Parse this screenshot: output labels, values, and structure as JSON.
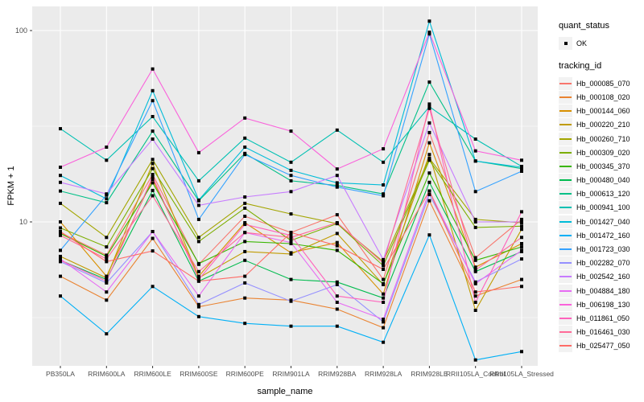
{
  "axes": {
    "x_title": "sample_name",
    "y_title": "FPKM + 1",
    "y_tick_labels": [
      "100",
      "10"
    ]
  },
  "legend": {
    "quant_status_title": "quant_status",
    "ok_label": "OK",
    "tracking_title": "tracking_id"
  },
  "colors": {
    "panel_bg": "#EBEBEB",
    "grid_major": "#FFFFFF",
    "grid_minor": "#FFFFFF",
    "tick_mark": "#333333",
    "tick_text": "#4D4D4D",
    "legend_key_bg": "#F2F2F2",
    "point": "#000000"
  },
  "chart_data": {
    "type": "line",
    "title": "",
    "xlabel": "sample_name",
    "ylabel": "FPKM + 1",
    "y_scale": "log10",
    "ylim": [
      1.77,
      131
    ],
    "y_major_ticks": [
      10,
      100
    ],
    "y_minor_ticks": [
      3.162,
      31.62
    ],
    "grid": "white major and minor gridlines on grey panel",
    "legend_position": "right",
    "point_marker": "small black square (quant_status = OK)",
    "categories": [
      "PB350LA",
      "RRIM600LA",
      "RRIM600LE",
      "RRIM600SE",
      "RRIM600PE",
      "RRIM901LA",
      "RRIM928BA",
      "RRIM928LA",
      "RRIM928LE",
      "RRII105LA_Control",
      "RRII105LA_Stressed"
    ],
    "series": [
      {
        "name": "Hb_000085_070",
        "color": "#F8766D",
        "values": [
          8.8,
          6.7,
          17.7,
          6.0,
          10.7,
          8.8,
          10.9,
          5.0,
          29.3,
          6.5,
          10.3
        ]
      },
      {
        "name": "Hb_000108_020",
        "color": "#EA8331",
        "values": [
          5.2,
          3.9,
          8.2,
          3.6,
          4.0,
          3.9,
          3.5,
          2.8,
          12.9,
          4.1,
          5.0
        ]
      },
      {
        "name": "Hb_000144_060",
        "color": "#D89000",
        "values": [
          10.0,
          5.2,
          16.7,
          5.2,
          9.9,
          6.9,
          7.8,
          4.2,
          25.9,
          5.8,
          7.7
        ]
      },
      {
        "name": "Hb_000220_210",
        "color": "#C09B00",
        "values": [
          6.6,
          5.1,
          20.2,
          5.1,
          7.0,
          6.8,
          8.7,
          4.7,
          22.5,
          3.45,
          9.15
        ]
      },
      {
        "name": "Hb_000260_710",
        "color": "#A3A500",
        "values": [
          12.5,
          8.3,
          21.2,
          8.3,
          12.5,
          11.0,
          9.8,
          6.2,
          21.5,
          10.3,
          9.9
        ]
      },
      {
        "name": "Hb_000309_020",
        "color": "#7CAE00",
        "values": [
          9.3,
          7.4,
          19.0,
          7.9,
          11.8,
          8.0,
          9.8,
          5.9,
          21.0,
          9.35,
          9.5
        ]
      },
      {
        "name": "Hb_000345_370",
        "color": "#39B600",
        "values": [
          8.7,
          6.6,
          16.0,
          6.05,
          7.9,
          7.7,
          7.1,
          4.75,
          18.0,
          6.3,
          7.4
        ]
      },
      {
        "name": "Hb_000480_040",
        "color": "#00BB4E",
        "values": [
          6.3,
          5.0,
          14.6,
          4.9,
          6.3,
          5.0,
          4.85,
          4.0,
          16.1,
          5.5,
          7.0
        ]
      },
      {
        "name": "Hb_000613_120",
        "color": "#00C087",
        "values": [
          14.5,
          12.6,
          29.8,
          12.9,
          22.8,
          16.4,
          15.5,
          14.0,
          53.8,
          20.8,
          19.0
        ]
      },
      {
        "name": "Hb_000941_100",
        "color": "#00C0B2",
        "values": [
          30.7,
          21.0,
          35.5,
          16.4,
          27.4,
          20.5,
          30.2,
          20.5,
          40.0,
          27.1,
          19.5
        ]
      },
      {
        "name": "Hb_001427_040",
        "color": "#00BCD8",
        "values": [
          17.5,
          13.2,
          48.5,
          13.0,
          24.6,
          18.6,
          16.0,
          15.6,
          112.0,
          20.8,
          19.3
        ]
      },
      {
        "name": "Hb_001472_160",
        "color": "#00B0F6",
        "values": [
          4.1,
          2.6,
          4.6,
          3.2,
          2.95,
          2.85,
          2.85,
          2.35,
          8.55,
          1.9,
          2.1
        ]
      },
      {
        "name": "Hb_001723_030",
        "color": "#35A2FF",
        "values": [
          7.1,
          13.8,
          43.0,
          10.3,
          22.5,
          17.5,
          15.2,
          13.7,
          96.0,
          14.4,
          18.4
        ]
      },
      {
        "name": "Hb_002282_070",
        "color": "#9590FF",
        "values": [
          6.2,
          4.8,
          8.9,
          3.7,
          4.8,
          3.85,
          4.7,
          3.0,
          13.9,
          4.85,
          6.4
        ]
      },
      {
        "name": "Hb_002542_160",
        "color": "#C77CFF",
        "values": [
          16.1,
          14.0,
          27.1,
          12.2,
          13.5,
          14.4,
          17.5,
          6.35,
          32.9,
          10.0,
          10.0
        ]
      },
      {
        "name": "Hb_004884_180",
        "color": "#E76BF3",
        "values": [
          6.4,
          4.3,
          8.9,
          4.1,
          8.8,
          7.8,
          3.8,
          3.1,
          14.5,
          4.75,
          7.1
        ]
      },
      {
        "name": "Hb_006198_130",
        "color": "#FA62DB",
        "values": [
          19.3,
          24.6,
          63.0,
          23.0,
          34.9,
          29.8,
          18.9,
          24.1,
          98.0,
          23.5,
          21.0
        ]
      },
      {
        "name": "Hb_011861_050",
        "color": "#FF62BC",
        "values": [
          6.3,
          4.9,
          17.2,
          5.0,
          9.7,
          8.5,
          4.1,
          3.8,
          41.3,
          3.8,
          11.3
        ]
      },
      {
        "name": "Hb_016461_030",
        "color": "#FF6A98",
        "values": [
          8.5,
          6.4,
          13.7,
          5.5,
          8.8,
          8.3,
          9.9,
          6.1,
          39.2,
          5.6,
          8.3
        ]
      },
      {
        "name": "Hb_025477_050",
        "color": "#FF6C67",
        "values": [
          8.9,
          6.2,
          7.05,
          4.9,
          5.2,
          8.8,
          7.5,
          5.65,
          14.5,
          4.3,
          4.6
        ]
      }
    ]
  }
}
